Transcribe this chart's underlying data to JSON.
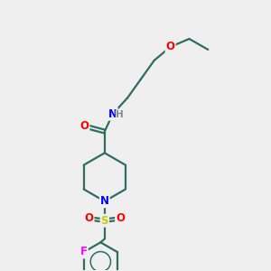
{
  "bg_color": "#efefef",
  "bond_color": "#2d6e5e",
  "atom_colors": {
    "O": "#ff0000",
    "N": "#0000ff",
    "S": "#cccc00",
    "F": "#ff00ff",
    "H": "#888888"
  },
  "figsize": [
    3.0,
    3.0
  ],
  "dpi": 100
}
